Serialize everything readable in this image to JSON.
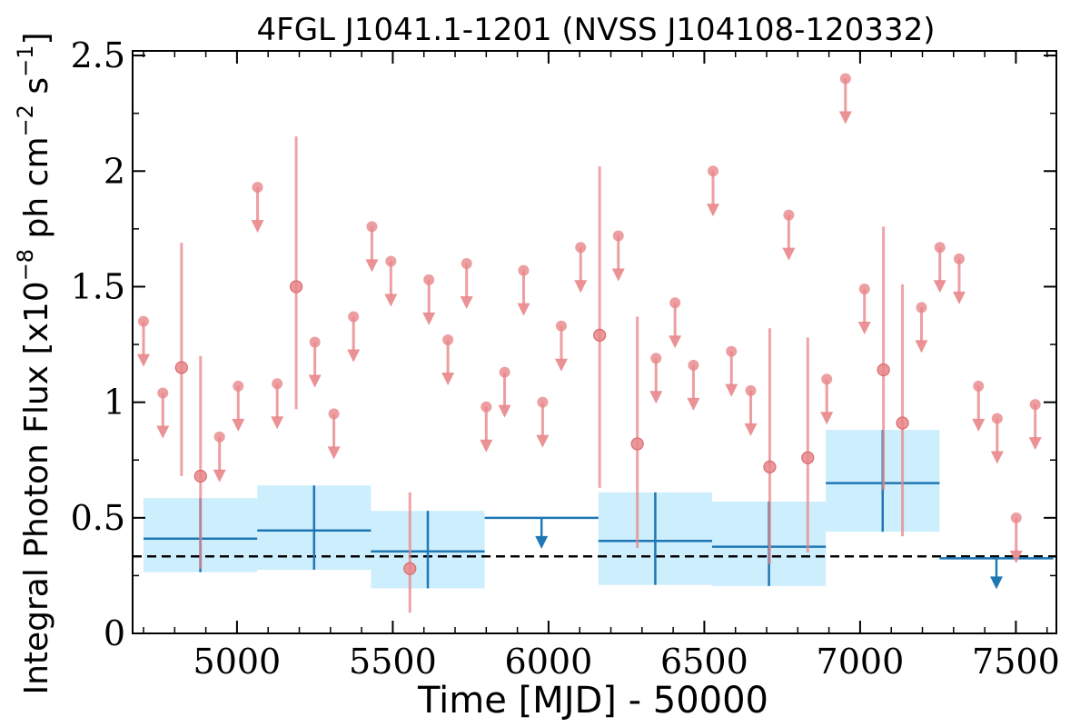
{
  "chart_data": {
    "type": "scatter",
    "title": "4FGL J1041.1-1201 (NVSS J104108-120332)",
    "xlabel": "Time [MJD] - 50000",
    "ylabel": "Integral Photon Flux [x10",
    "ylabel_exp1": "−8",
    "ylabel_mid": " ph cm",
    "ylabel_exp2": "−2",
    "ylabel_mid2": " s",
    "ylabel_exp3": "−1",
    "ylabel_end": "]",
    "xlim": [
      4665,
      7630
    ],
    "ylim": [
      0,
      2.52
    ],
    "xticks": [
      5000,
      5500,
      6000,
      6500,
      7000,
      7500
    ],
    "xtick_labels": [
      "5000",
      "5500",
      "6000",
      "6500",
      "7000",
      "7500"
    ],
    "yticks": [
      0,
      0.5,
      1,
      1.5,
      2,
      2.5
    ],
    "ytick_labels": [
      "0",
      "0.5",
      "1",
      "1.5",
      "2",
      "2.5"
    ],
    "reference_level": 0.333,
    "colors": {
      "fine": "#e8868a",
      "coarse": "#1f77b4",
      "coarse_band": "#cdeefc",
      "reference": "#000000"
    },
    "fine_upper_limits": [
      {
        "x": 4700,
        "y": 1.35
      },
      {
        "x": 4762,
        "y": 1.04
      },
      {
        "x": 4944,
        "y": 0.85
      },
      {
        "x": 5004,
        "y": 1.07
      },
      {
        "x": 5066,
        "y": 1.93
      },
      {
        "x": 5129,
        "y": 1.08
      },
      {
        "x": 5250,
        "y": 1.26
      },
      {
        "x": 5311,
        "y": 0.95
      },
      {
        "x": 5374,
        "y": 1.37
      },
      {
        "x": 5433,
        "y": 1.76
      },
      {
        "x": 5494,
        "y": 1.61
      },
      {
        "x": 5616,
        "y": 1.53
      },
      {
        "x": 5677,
        "y": 1.27
      },
      {
        "x": 5737,
        "y": 1.6
      },
      {
        "x": 5800,
        "y": 0.98
      },
      {
        "x": 5859,
        "y": 1.13
      },
      {
        "x": 5920,
        "y": 1.57
      },
      {
        "x": 5981,
        "y": 1.0
      },
      {
        "x": 6041,
        "y": 1.33
      },
      {
        "x": 6103,
        "y": 1.67
      },
      {
        "x": 6224,
        "y": 1.72
      },
      {
        "x": 6345,
        "y": 1.19
      },
      {
        "x": 6406,
        "y": 1.43
      },
      {
        "x": 6465,
        "y": 1.16
      },
      {
        "x": 6528,
        "y": 2.0
      },
      {
        "x": 6587,
        "y": 1.22
      },
      {
        "x": 6649,
        "y": 1.05
      },
      {
        "x": 6771,
        "y": 1.81
      },
      {
        "x": 6893,
        "y": 1.1
      },
      {
        "x": 6953,
        "y": 2.4
      },
      {
        "x": 7014,
        "y": 1.49
      },
      {
        "x": 7197,
        "y": 1.41
      },
      {
        "x": 7256,
        "y": 1.67
      },
      {
        "x": 7318,
        "y": 1.62
      },
      {
        "x": 7380,
        "y": 1.07
      },
      {
        "x": 7440,
        "y": 0.93
      },
      {
        "x": 7501,
        "y": 0.5
      },
      {
        "x": 7562,
        "y": 0.99
      }
    ],
    "fine_detections": [
      {
        "x": 4822,
        "y": 1.15,
        "lo": 0.68,
        "hi": 1.69
      },
      {
        "x": 4883,
        "y": 0.68,
        "lo": 0.28,
        "hi": 1.2
      },
      {
        "x": 5190,
        "y": 1.5,
        "lo": 0.97,
        "hi": 2.15
      },
      {
        "x": 5555,
        "y": 0.28,
        "lo": 0.09,
        "hi": 0.61
      },
      {
        "x": 6164,
        "y": 1.29,
        "lo": 0.63,
        "hi": 2.02
      },
      {
        "x": 6285,
        "y": 0.82,
        "lo": 0.37,
        "hi": 1.37
      },
      {
        "x": 6710,
        "y": 0.72,
        "lo": 0.3,
        "hi": 1.32
      },
      {
        "x": 6832,
        "y": 0.76,
        "lo": 0.35,
        "hi": 1.28
      },
      {
        "x": 7075,
        "y": 1.14,
        "lo": 0.62,
        "hi": 1.76
      },
      {
        "x": 7136,
        "y": 0.91,
        "lo": 0.42,
        "hi": 1.51
      }
    ],
    "coarse_bins": [
      {
        "x0": 4700,
        "x1": 5065,
        "y": 0.41,
        "lo": 0.265,
        "hi": 0.585
      },
      {
        "x0": 5065,
        "x1": 5430,
        "y": 0.445,
        "lo": 0.275,
        "hi": 0.64
      },
      {
        "x0": 5430,
        "x1": 5795,
        "y": 0.355,
        "lo": 0.195,
        "hi": 0.53
      },
      {
        "x0": 6160,
        "x1": 6525,
        "y": 0.4,
        "lo": 0.21,
        "hi": 0.61
      },
      {
        "x0": 6525,
        "x1": 6890,
        "y": 0.375,
        "lo": 0.205,
        "hi": 0.57
      },
      {
        "x0": 6890,
        "x1": 7255,
        "y": 0.65,
        "lo": 0.44,
        "hi": 0.88
      }
    ],
    "coarse_upper_limits": [
      {
        "x0": 5795,
        "x1": 6160,
        "y": 0.5
      },
      {
        "x0": 7255,
        "x1": 7620,
        "y": 0.325
      }
    ]
  }
}
